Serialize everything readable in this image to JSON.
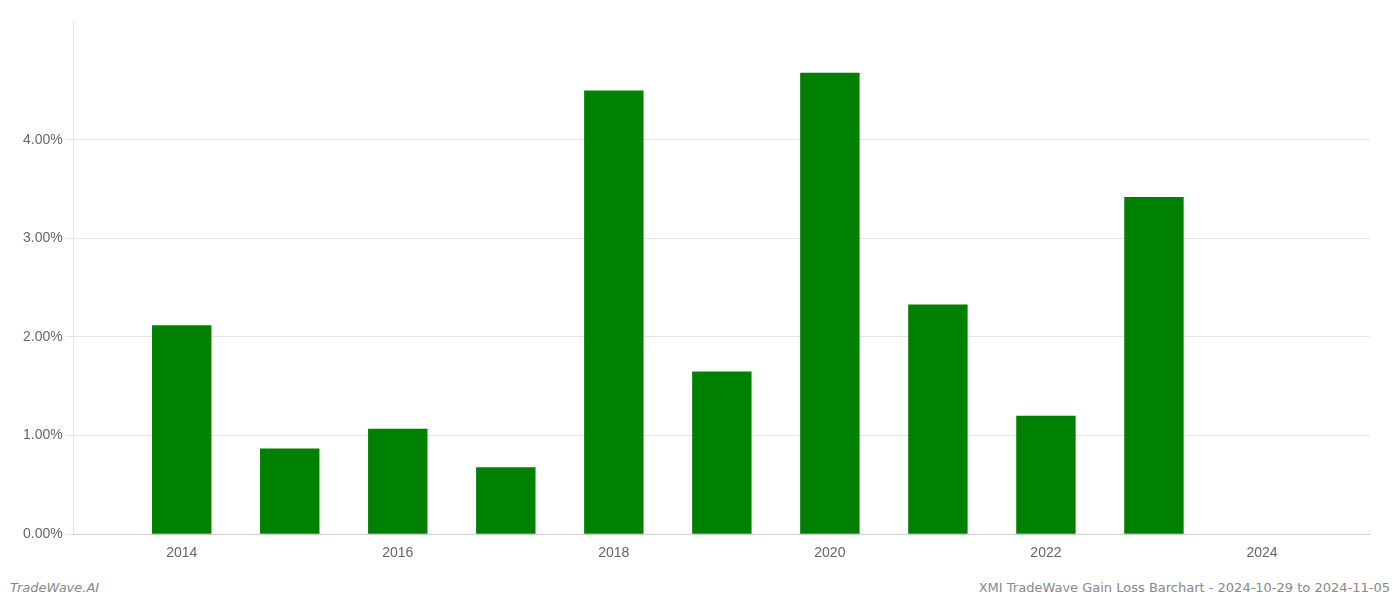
{
  "chart_data": {
    "type": "bar",
    "x": [
      2014,
      2015,
      2016,
      2017,
      2018,
      2019,
      2020,
      2021,
      2022,
      2023
    ],
    "values": [
      0.0212,
      0.0087,
      0.0107,
      0.0068,
      0.045,
      0.0165,
      0.0468,
      0.0233,
      0.012,
      0.0342
    ],
    "color": "#008000",
    "xlim": [
      2013.0,
      2025.0
    ],
    "xticks": [
      2014,
      2016,
      2018,
      2020,
      2022,
      2024
    ],
    "ylim": [
      0,
      0.052
    ],
    "yticks": [
      {
        "value": 0.0,
        "label": "0.00%"
      },
      {
        "value": 0.01,
        "label": "1.00%"
      },
      {
        "value": 0.02,
        "label": "2.00%"
      },
      {
        "value": 0.03,
        "label": "3.00%"
      },
      {
        "value": 0.04,
        "label": "4.00%"
      }
    ],
    "grid": true,
    "annotations": [
      "TradeWave.AI",
      "XMI TradeWave Gain Loss Barchart - 2024-10-29 to 2024-11-05"
    ]
  }
}
